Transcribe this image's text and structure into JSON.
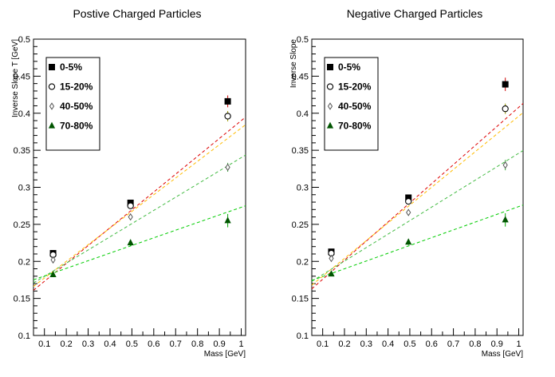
{
  "chart_data": [
    {
      "type": "scatter",
      "title": "Postive Charged Particles",
      "xlabel": "Mass [GeV]",
      "ylabel": "Inverse Slope T [GeV]",
      "xlim": [
        0.05,
        1.02
      ],
      "ylim": [
        0.1,
        0.5
      ],
      "xticks": [
        "0.1",
        "0.2",
        "0.3",
        "0.4",
        "0.5",
        "0.6",
        "0.7",
        "0.8",
        "0.9",
        "1"
      ],
      "yticks": [
        "0.1",
        "0.15",
        "0.2",
        "0.25",
        "0.3",
        "0.35",
        "0.4",
        "0.45",
        "0.5"
      ],
      "grid": false,
      "legend_position": "top-left",
      "series": [
        {
          "name": "0-5%",
          "marker": "square-filled",
          "color": "#000000",
          "errcolor": "#cc0000",
          "fitcolor": "#dd0000",
          "x": [
            0.1396,
            0.4937,
            0.9383
          ],
          "y": [
            0.211,
            0.279,
            0.416
          ],
          "yerr": [
            0.004,
            0.004,
            0.008
          ],
          "fit": [
            0.149,
            0.241
          ]
        },
        {
          "name": "15-20%",
          "marker": "circle-open",
          "color": "#000000",
          "errcolor": "#999900",
          "fitcolor": "#ffbb00",
          "x": [
            0.1396,
            0.4937,
            0.9383
          ],
          "y": [
            0.209,
            0.275,
            0.396
          ],
          "yerr": [
            0.004,
            0.004,
            0.007
          ],
          "fit": [
            0.155,
            0.225
          ]
        },
        {
          "name": "40-50%",
          "marker": "diamond-open",
          "color": "#555555",
          "errcolor": "#33aa33",
          "fitcolor": "#44bb44",
          "x": [
            0.1396,
            0.4937,
            0.9383
          ],
          "y": [
            0.202,
            0.26,
            0.327
          ],
          "yerr": [
            0.004,
            0.004,
            0.006
          ],
          "fit": [
            0.162,
            0.178
          ]
        },
        {
          "name": "70-80%",
          "marker": "triangle-filled",
          "color": "#005500",
          "errcolor": "#00aa00",
          "fitcolor": "#00cc00",
          "x": [
            0.1396,
            0.4937,
            0.9383
          ],
          "y": [
            0.182,
            0.225,
            0.255
          ],
          "yerr": [
            0.003,
            0.004,
            0.009
          ],
          "fit": [
            0.17,
            0.103
          ]
        }
      ]
    },
    {
      "type": "scatter",
      "title": "Negative Charged Particles",
      "xlabel": "Mass [GeV]",
      "ylabel": "Inverse Slope",
      "xlim": [
        0.05,
        1.02
      ],
      "ylim": [
        0.1,
        0.5
      ],
      "xticks": [
        "0.1",
        "0.2",
        "0.3",
        "0.4",
        "0.5",
        "0.6",
        "0.7",
        "0.8",
        "0.9",
        "1"
      ],
      "yticks": [
        "0.1",
        "0.15",
        "0.2",
        "0.25",
        "0.3",
        "0.35",
        "0.4",
        "0.45",
        "0.5"
      ],
      "grid": false,
      "legend_position": "top-left",
      "series": [
        {
          "name": "0-5%",
          "marker": "square-filled",
          "color": "#000000",
          "errcolor": "#cc0000",
          "fitcolor": "#dd0000",
          "x": [
            0.1396,
            0.4937,
            0.9383
          ],
          "y": [
            0.213,
            0.286,
            0.439
          ],
          "yerr": [
            0.004,
            0.004,
            0.009
          ],
          "fit": [
            0.15,
            0.258
          ]
        },
        {
          "name": "15-20%",
          "marker": "circle-open",
          "color": "#000000",
          "errcolor": "#999900",
          "fitcolor": "#ffbb00",
          "x": [
            0.1396,
            0.4937,
            0.9383
          ],
          "y": [
            0.211,
            0.281,
            0.406
          ],
          "yerr": [
            0.004,
            0.004,
            0.007
          ],
          "fit": [
            0.156,
            0.24
          ]
        },
        {
          "name": "40-50%",
          "marker": "diamond-open",
          "color": "#555555",
          "errcolor": "#33aa33",
          "fitcolor": "#44bb44",
          "x": [
            0.1396,
            0.4937,
            0.9383
          ],
          "y": [
            0.204,
            0.266,
            0.33
          ],
          "yerr": [
            0.004,
            0.004,
            0.007
          ],
          "fit": [
            0.164,
            0.182
          ]
        },
        {
          "name": "70-80%",
          "marker": "triangle-filled",
          "color": "#005500",
          "errcolor": "#00aa00",
          "fitcolor": "#00cc00",
          "x": [
            0.1396,
            0.4937,
            0.9383
          ],
          "y": [
            0.183,
            0.226,
            0.256
          ],
          "yerr": [
            0.003,
            0.004,
            0.009
          ],
          "fit": [
            0.169,
            0.105
          ]
        }
      ]
    }
  ]
}
